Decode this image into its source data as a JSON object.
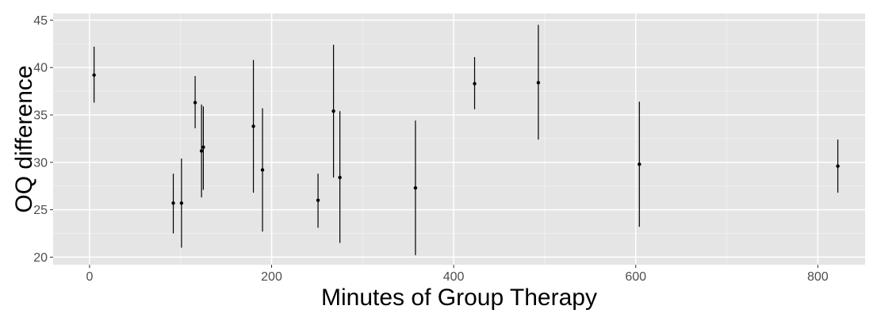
{
  "chart_data": {
    "type": "scatter",
    "title": "",
    "xlabel": "Minutes of Group Therapy",
    "ylabel": "OQ difference",
    "xlim": [
      -40,
      852
    ],
    "ylim": [
      19.2,
      45.7
    ],
    "x_ticks": [
      0,
      200,
      400,
      600,
      800
    ],
    "y_ticks": [
      20,
      25,
      30,
      35,
      40,
      45
    ],
    "grid": true,
    "legend": "none",
    "colors": {
      "panel": "#e5e5e5",
      "grid_major": "#ffffff",
      "grid_minor": "#f2f2f2",
      "point": "#000000",
      "tick_label": "#4d4d4d"
    },
    "points": [
      {
        "x": 5,
        "y": 39.2,
        "ymin": 36.3,
        "ymax": 42.2
      },
      {
        "x": 92,
        "y": 25.7,
        "ymin": 22.5,
        "ymax": 28.8
      },
      {
        "x": 101,
        "y": 25.7,
        "ymin": 21.0,
        "ymax": 30.4
      },
      {
        "x": 116,
        "y": 36.3,
        "ymin": 33.6,
        "ymax": 39.1
      },
      {
        "x": 123,
        "y": 31.2,
        "ymin": 26.3,
        "ymax": 36.1
      },
      {
        "x": 125,
        "y": 31.6,
        "ymin": 27.1,
        "ymax": 35.9
      },
      {
        "x": 180,
        "y": 33.8,
        "ymin": 26.8,
        "ymax": 40.8
      },
      {
        "x": 190,
        "y": 29.2,
        "ymin": 22.7,
        "ymax": 35.7
      },
      {
        "x": 251,
        "y": 26.0,
        "ymin": 23.1,
        "ymax": 28.8
      },
      {
        "x": 268,
        "y": 35.4,
        "ymin": 28.4,
        "ymax": 42.4
      },
      {
        "x": 275,
        "y": 28.4,
        "ymin": 21.5,
        "ymax": 35.4
      },
      {
        "x": 358,
        "y": 27.3,
        "ymin": 20.2,
        "ymax": 34.4
      },
      {
        "x": 423,
        "y": 38.3,
        "ymin": 35.6,
        "ymax": 41.1
      },
      {
        "x": 493,
        "y": 38.4,
        "ymin": 32.4,
        "ymax": 44.5
      },
      {
        "x": 604,
        "y": 29.8,
        "ymin": 23.2,
        "ymax": 36.4
      },
      {
        "x": 822,
        "y": 29.6,
        "ymin": 26.8,
        "ymax": 32.4
      }
    ]
  }
}
